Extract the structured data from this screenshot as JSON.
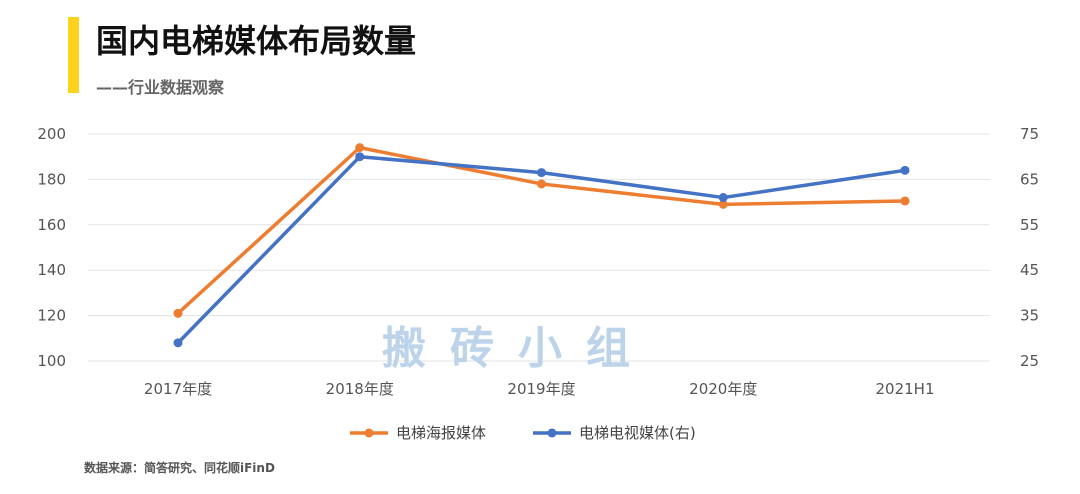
{
  "header": {
    "title": "国内电梯媒体布局数量",
    "subtitle": "——行业数据观察"
  },
  "watermark": "搬砖小组",
  "source": "数据来源：简答研究、同花顺iFinD",
  "colors": {
    "accent": "#FFD21E",
    "series_orange": "#ED7D31",
    "series_blue": "#4472C4",
    "grid": "#E3E3E3"
  },
  "chart_data": {
    "type": "line",
    "title": "",
    "categories": [
      "2017年度",
      "2018年度",
      "2019年度",
      "2020年度",
      "2021H1"
    ],
    "series": [
      {
        "name": "电梯海报媒体",
        "axis": "left",
        "values": [
          121,
          194,
          178,
          169,
          170.5
        ]
      },
      {
        "name": "电梯电视媒体(右)",
        "axis": "right",
        "values": [
          29,
          70,
          66.5,
          61,
          67
        ]
      }
    ],
    "y_left": {
      "min": 100,
      "max": 200,
      "ticks": [
        "100",
        "120",
        "140",
        "160",
        "180",
        "200"
      ]
    },
    "y_right": {
      "min": 25,
      "max": 75,
      "ticks": [
        "25",
        "35",
        "45",
        "55",
        "65",
        "75"
      ]
    },
    "grid": true,
    "legend": "bottom-center"
  }
}
